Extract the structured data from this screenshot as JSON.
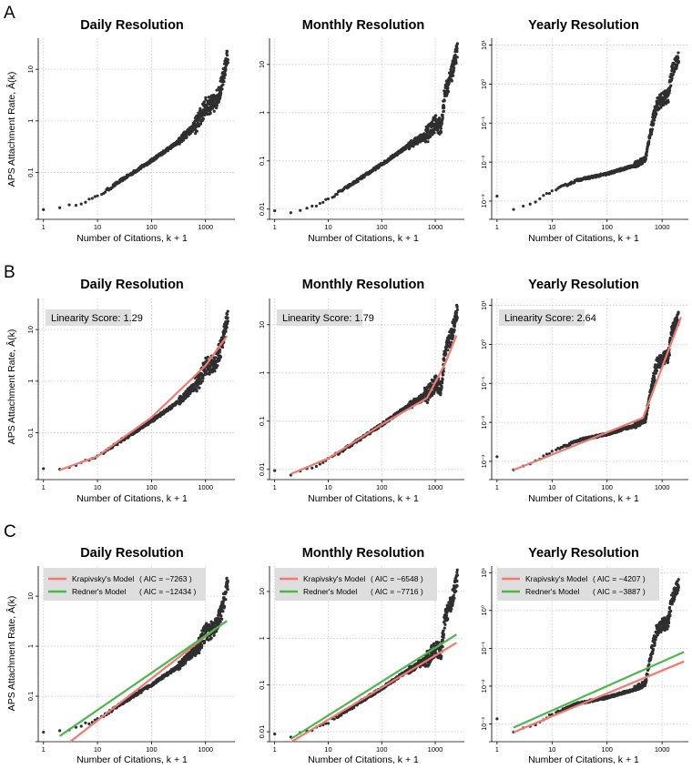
{
  "panel_letters": [
    "A",
    "B",
    "C"
  ],
  "titles": [
    "Daily Resolution",
    "Monthly Resolution",
    "Yearly Resolution"
  ],
  "xlabel": "Number of Citations, k + 1",
  "ylabel": "APS Attachment Rate, Â(k)",
  "colors": {
    "points": "#2f2f2f",
    "fit": "#f07a70",
    "krapivsky": "#f07a70",
    "redner": "#4cb84c",
    "grid": "#c8c8c8",
    "score_box": "#dedede"
  },
  "chart_data": [
    {
      "row": "A",
      "type": "scatter",
      "title": "Daily Resolution",
      "xscale": "log",
      "yscale": "log",
      "xlim": [
        0.8,
        3500
      ],
      "ylim": [
        0.014,
        40
      ],
      "x_ticks": [
        {
          "v": 1,
          "label": "1"
        },
        {
          "v": 10,
          "label": "10"
        },
        {
          "v": 100,
          "label": "100"
        },
        {
          "v": 1000,
          "label": "1000"
        }
      ],
      "y_ticks": [
        {
          "v": 0.1,
          "label": "0.1"
        },
        {
          "v": 1,
          "label": "1"
        },
        {
          "v": 10,
          "label": "10"
        }
      ],
      "anchors": [
        [
          1,
          0.02
        ],
        [
          2,
          0.02
        ],
        [
          5,
          0.026
        ],
        [
          10,
          0.034
        ],
        [
          30,
          0.075
        ],
        [
          100,
          0.17
        ],
        [
          300,
          0.38
        ],
        [
          700,
          0.9
        ],
        [
          1000,
          1.9
        ],
        [
          1500,
          2.2
        ],
        [
          2000,
          5
        ],
        [
          2600,
          20
        ]
      ],
      "sample_points": [
        [
          1,
          0.021
        ],
        [
          2,
          0.02
        ],
        [
          3,
          0.022
        ],
        [
          5,
          0.026
        ],
        [
          10,
          0.033
        ],
        [
          30,
          0.075
        ],
        [
          100,
          0.17
        ],
        [
          300,
          0.38
        ],
        [
          1000,
          1.9
        ],
        [
          2600,
          25
        ]
      ]
    },
    {
      "row": "A",
      "type": "scatter",
      "title": "Monthly Resolution",
      "xscale": "log",
      "yscale": "log",
      "xlim": [
        0.8,
        3500
      ],
      "ylim": [
        0.007,
        35
      ],
      "x_ticks": [
        {
          "v": 1,
          "label": "1"
        },
        {
          "v": 10,
          "label": "10"
        },
        {
          "v": 100,
          "label": "100"
        },
        {
          "v": 1000,
          "label": "1000"
        }
      ],
      "y_ticks": [
        {
          "v": 0.01,
          "label": "0.01"
        },
        {
          "v": 0.1,
          "label": "0.1"
        },
        {
          "v": 1,
          "label": "1"
        },
        {
          "v": 10,
          "label": "10"
        }
      ],
      "anchors": [
        [
          1,
          0.009
        ],
        [
          2,
          0.008
        ],
        [
          5,
          0.011
        ],
        [
          10,
          0.016
        ],
        [
          30,
          0.035
        ],
        [
          100,
          0.085
        ],
        [
          300,
          0.2
        ],
        [
          700,
          0.35
        ],
        [
          1000,
          0.6
        ],
        [
          1300,
          0.5
        ],
        [
          1500,
          2.5
        ],
        [
          2000,
          6
        ],
        [
          2600,
          20
        ]
      ],
      "sample_points": [
        [
          1,
          0.009
        ],
        [
          2,
          0.0085
        ],
        [
          10,
          0.016
        ],
        [
          100,
          0.085
        ],
        [
          1000,
          0.6
        ],
        [
          2600,
          25
        ]
      ]
    },
    {
      "row": "A",
      "type": "scatter",
      "title": "Yearly Resolution",
      "xscale": "log",
      "yscale": "log",
      "xlim": [
        0.8,
        3000
      ],
      "ylim": [
        0.0004,
        15
      ],
      "x_ticks": [
        {
          "v": 1,
          "label": "1"
        },
        {
          "v": 10,
          "label": "10"
        },
        {
          "v": 100,
          "label": "100"
        },
        {
          "v": 1000,
          "label": "1000"
        }
      ],
      "y_ticks": [
        {
          "v": 0.001,
          "label": "10⁻³"
        },
        {
          "v": 0.01,
          "label": "10⁻²"
        },
        {
          "v": 0.1,
          "label": "10⁻¹"
        },
        {
          "v": 1,
          "label": "10⁰"
        },
        {
          "v": 10,
          "label": "10¹"
        }
      ],
      "anchors": [
        [
          1,
          0.0013
        ],
        [
          2,
          0.0006
        ],
        [
          5,
          0.001
        ],
        [
          10,
          0.0018
        ],
        [
          30,
          0.0035
        ],
        [
          100,
          0.005
        ],
        [
          300,
          0.008
        ],
        [
          500,
          0.012
        ],
        [
          600,
          0.05
        ],
        [
          800,
          0.3
        ],
        [
          1000,
          0.4
        ],
        [
          1300,
          0.5
        ],
        [
          1500,
          2
        ],
        [
          2000,
          5
        ]
      ],
      "sample_points": [
        [
          1,
          0.0013
        ],
        [
          2,
          0.0006
        ],
        [
          10,
          0.0018
        ],
        [
          100,
          0.005
        ],
        [
          800,
          0.3
        ],
        [
          2000,
          9
        ]
      ]
    },
    {
      "row": "B",
      "type": "scatter+line",
      "title": "Daily Resolution",
      "xscale": "log",
      "yscale": "log",
      "xlim": [
        0.8,
        3500
      ],
      "ylim": [
        0.014,
        40
      ],
      "x_ticks": [
        {
          "v": 1,
          "label": "1"
        },
        {
          "v": 10,
          "label": "10"
        },
        {
          "v": 100,
          "label": "100"
        },
        {
          "v": 1000,
          "label": "1000"
        }
      ],
      "y_ticks": [
        {
          "v": 0.1,
          "label": "0.1"
        },
        {
          "v": 1,
          "label": "1"
        },
        {
          "v": 10,
          "label": "10"
        }
      ],
      "anchors": [
        [
          1,
          0.02
        ],
        [
          2,
          0.02
        ],
        [
          5,
          0.026
        ],
        [
          10,
          0.034
        ],
        [
          30,
          0.075
        ],
        [
          100,
          0.17
        ],
        [
          300,
          0.38
        ],
        [
          700,
          0.9
        ],
        [
          1000,
          1.9
        ],
        [
          1500,
          2.2
        ],
        [
          2000,
          5
        ],
        [
          2600,
          20
        ]
      ],
      "fit": [
        [
          2,
          0.019
        ],
        [
          10,
          0.035
        ],
        [
          100,
          0.2
        ],
        [
          1000,
          2
        ],
        [
          2500,
          7.5
        ]
      ],
      "score": "Linearity Score: 1.29"
    },
    {
      "row": "B",
      "type": "scatter+line",
      "title": "Monthly Resolution",
      "xscale": "log",
      "yscale": "log",
      "xlim": [
        0.8,
        3500
      ],
      "ylim": [
        0.007,
        35
      ],
      "x_ticks": [
        {
          "v": 1,
          "label": "1"
        },
        {
          "v": 10,
          "label": "10"
        },
        {
          "v": 100,
          "label": "100"
        },
        {
          "v": 1000,
          "label": "1000"
        }
      ],
      "y_ticks": [
        {
          "v": 0.01,
          "label": "0.01"
        },
        {
          "v": 0.1,
          "label": "0.1"
        },
        {
          "v": 1,
          "label": "1"
        },
        {
          "v": 10,
          "label": "10"
        }
      ],
      "anchors": [
        [
          1,
          0.009
        ],
        [
          2,
          0.008
        ],
        [
          5,
          0.011
        ],
        [
          10,
          0.016
        ],
        [
          30,
          0.035
        ],
        [
          100,
          0.085
        ],
        [
          300,
          0.2
        ],
        [
          700,
          0.35
        ],
        [
          1000,
          0.6
        ],
        [
          1300,
          0.5
        ],
        [
          1500,
          2.5
        ],
        [
          2000,
          6
        ],
        [
          2600,
          20
        ]
      ],
      "fit": [
        [
          2,
          0.008
        ],
        [
          10,
          0.017
        ],
        [
          100,
          0.085
        ],
        [
          700,
          0.3
        ],
        [
          1500,
          1.5
        ],
        [
          2500,
          6
        ]
      ],
      "score": "Linearity Score: 1.79"
    },
    {
      "row": "B",
      "type": "scatter+line",
      "title": "Yearly Resolution",
      "xscale": "log",
      "yscale": "log",
      "xlim": [
        0.8,
        3000
      ],
      "ylim": [
        0.0004,
        15
      ],
      "x_ticks": [
        {
          "v": 1,
          "label": "1"
        },
        {
          "v": 10,
          "label": "10"
        },
        {
          "v": 100,
          "label": "100"
        },
        {
          "v": 1000,
          "label": "1000"
        }
      ],
      "y_ticks": [
        {
          "v": 0.001,
          "label": "10⁻³"
        },
        {
          "v": 0.01,
          "label": "10⁻²"
        },
        {
          "v": 0.1,
          "label": "10⁻¹"
        },
        {
          "v": 1,
          "label": "10⁰"
        },
        {
          "v": 10,
          "label": "10¹"
        }
      ],
      "anchors": [
        [
          1,
          0.0013
        ],
        [
          2,
          0.0006
        ],
        [
          5,
          0.001
        ],
        [
          10,
          0.0018
        ],
        [
          30,
          0.0035
        ],
        [
          100,
          0.005
        ],
        [
          300,
          0.008
        ],
        [
          500,
          0.012
        ],
        [
          600,
          0.05
        ],
        [
          800,
          0.3
        ],
        [
          1000,
          0.4
        ],
        [
          1300,
          0.5
        ],
        [
          1500,
          2
        ],
        [
          2000,
          5
        ]
      ],
      "fit": [
        [
          2,
          0.0006
        ],
        [
          100,
          0.0055
        ],
        [
          450,
          0.013
        ],
        [
          2200,
          5
        ]
      ],
      "score": "Linearity Score: 2.64"
    },
    {
      "row": "C",
      "type": "scatter+line",
      "title": "Daily Resolution",
      "xscale": "log",
      "yscale": "log",
      "xlim": [
        0.8,
        3500
      ],
      "ylim": [
        0.014,
        40
      ],
      "x_ticks": [
        {
          "v": 1,
          "label": "1"
        },
        {
          "v": 10,
          "label": "10"
        },
        {
          "v": 100,
          "label": "100"
        },
        {
          "v": 1000,
          "label": "1000"
        }
      ],
      "y_ticks": [
        {
          "v": 0.1,
          "label": "0.1"
        },
        {
          "v": 1,
          "label": "1"
        },
        {
          "v": 10,
          "label": "10"
        }
      ],
      "anchors": [
        [
          1,
          0.02
        ],
        [
          2,
          0.02
        ],
        [
          5,
          0.026
        ],
        [
          10,
          0.034
        ],
        [
          30,
          0.075
        ],
        [
          100,
          0.17
        ],
        [
          300,
          0.38
        ],
        [
          700,
          0.9
        ],
        [
          1000,
          1.9
        ],
        [
          1500,
          2.2
        ],
        [
          2000,
          5
        ],
        [
          2600,
          20
        ]
      ],
      "legend": [
        {
          "name": "Krapivsky's Model",
          "aic": "( AIC = −7263 )",
          "color": "#f07a70",
          "line": [
            [
              3,
              0.012
            ],
            [
              1500,
              2.2
            ]
          ]
        },
        {
          "name": "Redner's Model",
          "aic": "( AIC = −12434 )",
          "color": "#4cb84c",
          "line": [
            [
              2,
              0.016
            ],
            [
              2500,
              3.2
            ]
          ]
        }
      ]
    },
    {
      "row": "C",
      "type": "scatter+line",
      "title": "Monthly Resolution",
      "xscale": "log",
      "yscale": "log",
      "xlim": [
        0.8,
        3500
      ],
      "ylim": [
        0.007,
        35
      ],
      "x_ticks": [
        {
          "v": 1,
          "label": "1"
        },
        {
          "v": 10,
          "label": "10"
        },
        {
          "v": 100,
          "label": "100"
        },
        {
          "v": 1000,
          "label": "1000"
        }
      ],
      "y_ticks": [
        {
          "v": 0.01,
          "label": "0.01"
        },
        {
          "v": 0.1,
          "label": "0.1"
        },
        {
          "v": 1,
          "label": "1"
        },
        {
          "v": 10,
          "label": "10"
        }
      ],
      "anchors": [
        [
          1,
          0.009
        ],
        [
          2,
          0.008
        ],
        [
          5,
          0.011
        ],
        [
          10,
          0.016
        ],
        [
          30,
          0.035
        ],
        [
          100,
          0.085
        ],
        [
          300,
          0.2
        ],
        [
          700,
          0.35
        ],
        [
          1000,
          0.6
        ],
        [
          1300,
          0.5
        ],
        [
          1500,
          2.5
        ],
        [
          2000,
          6
        ],
        [
          2600,
          20
        ]
      ],
      "legend": [
        {
          "name": "Krapivsky's Model",
          "aic": "( AIC = −6548 )",
          "color": "#f07a70",
          "line": [
            [
              2,
              0.006
            ],
            [
              2500,
              0.8
            ]
          ]
        },
        {
          "name": "Redner's Model",
          "aic": "( AIC = −7716 )",
          "color": "#4cb84c",
          "line": [
            [
              2,
              0.007
            ],
            [
              2500,
              1.2
            ]
          ]
        }
      ]
    },
    {
      "row": "C",
      "type": "scatter+line",
      "title": "Yearly Resolution",
      "xscale": "log",
      "yscale": "log",
      "xlim": [
        0.8,
        3000
      ],
      "ylim": [
        0.0004,
        15
      ],
      "x_ticks": [
        {
          "v": 1,
          "label": "1"
        },
        {
          "v": 10,
          "label": "10"
        },
        {
          "v": 100,
          "label": "100"
        },
        {
          "v": 1000,
          "label": "1000"
        }
      ],
      "y_ticks": [
        {
          "v": 0.001,
          "label": "10⁻³"
        },
        {
          "v": 0.01,
          "label": "10⁻²"
        },
        {
          "v": 0.1,
          "label": "10⁻¹"
        },
        {
          "v": 1,
          "label": "10⁰"
        },
        {
          "v": 10,
          "label": "10¹"
        }
      ],
      "anchors": [
        [
          1,
          0.0013
        ],
        [
          2,
          0.0006
        ],
        [
          5,
          0.001
        ],
        [
          10,
          0.0018
        ],
        [
          30,
          0.0035
        ],
        [
          100,
          0.005
        ],
        [
          300,
          0.008
        ],
        [
          500,
          0.012
        ],
        [
          600,
          0.05
        ],
        [
          800,
          0.3
        ],
        [
          1000,
          0.4
        ],
        [
          1300,
          0.5
        ],
        [
          1500,
          2
        ],
        [
          2000,
          5
        ]
      ],
      "legend": [
        {
          "name": "Krapivsky's Model",
          "aic": "( AIC = −4207 )",
          "color": "#f07a70",
          "line": [
            [
              2,
              0.0006
            ],
            [
              2500,
              0.045
            ]
          ]
        },
        {
          "name": "Redner's Model",
          "aic": "( AIC = −3887 )",
          "color": "#4cb84c",
          "line": [
            [
              2,
              0.0008
            ],
            [
              2500,
              0.08
            ]
          ]
        }
      ]
    }
  ]
}
